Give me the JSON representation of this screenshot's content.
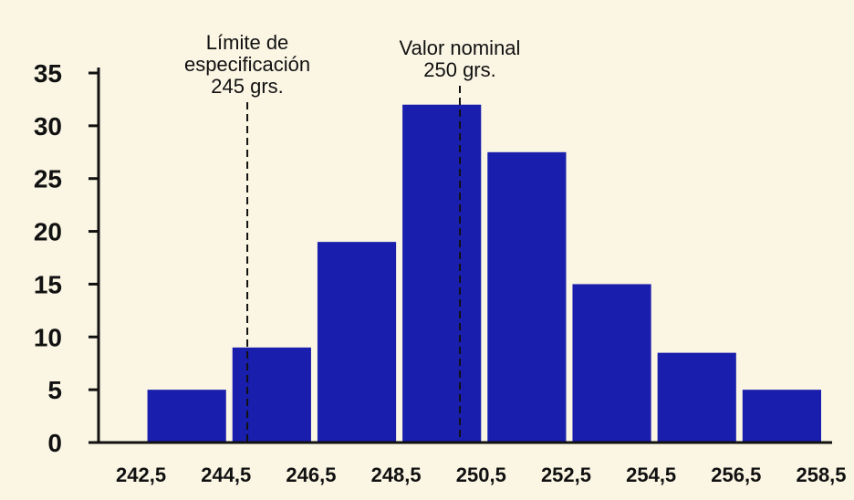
{
  "chart_data": {
    "type": "bar",
    "title": "",
    "xlabel": "",
    "ylabel": "",
    "x_tick_labels": [
      "242,5",
      "244,5",
      "246,5",
      "248,5",
      "250,5",
      "252,5",
      "254,5",
      "256,5",
      "258,5"
    ],
    "bins": [
      {
        "from": 242.5,
        "to": 244.5,
        "value": 5
      },
      {
        "from": 244.5,
        "to": 246.5,
        "value": 9
      },
      {
        "from": 246.5,
        "to": 248.5,
        "value": 19
      },
      {
        "from": 248.5,
        "to": 250.5,
        "value": 32
      },
      {
        "from": 250.5,
        "to": 252.5,
        "value": 27.5
      },
      {
        "from": 252.5,
        "to": 254.5,
        "value": 15
      },
      {
        "from": 254.5,
        "to": 256.5,
        "value": 8.5
      },
      {
        "from": 256.5,
        "to": 258.5,
        "value": 5
      }
    ],
    "yticks": [
      0,
      5,
      10,
      15,
      20,
      25,
      30,
      35
    ],
    "ylim": [
      0,
      35
    ],
    "grid": false,
    "bar_color": "#1a1eac",
    "reference_lines": [
      {
        "x": 245,
        "style": "dashed",
        "label_lines": [
          "Límite de",
          "especificación",
          "245 grs."
        ]
      },
      {
        "x": 250,
        "style": "dashed",
        "label_lines": [
          "Valor nominal",
          "250 grs."
        ]
      }
    ]
  }
}
